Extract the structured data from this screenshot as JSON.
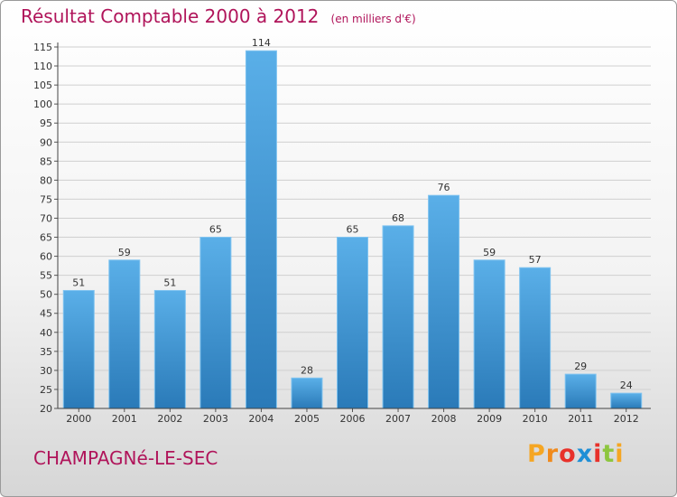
{
  "header": {
    "title": "Résultat Comptable 2000 à 2012",
    "subtitle": "(en milliers d'€)"
  },
  "footer": {
    "commune": "CHAMPAGNé-LE-SEC",
    "logo_letters": [
      "P",
      "r",
      "o",
      "x",
      "i",
      "t",
      "i"
    ],
    "logo_colors": [
      "#f5a623",
      "#f08a1c",
      "#e8312a",
      "#1f8fd6",
      "#e8312a",
      "#8dc63f",
      "#f5a623"
    ]
  },
  "colors": {
    "title": "#b0145a",
    "bar_top": "#5aafe8",
    "bar_bottom": "#2a7ab8",
    "grid": "#cfcfcf"
  },
  "chart_data": {
    "type": "bar",
    "title": "Résultat Comptable 2000 à 2012",
    "subtitle": "(en milliers d'€)",
    "xlabel": "",
    "ylabel": "",
    "categories": [
      "2000",
      "2001",
      "2002",
      "2003",
      "2004",
      "2005",
      "2006",
      "2007",
      "2008",
      "2009",
      "2010",
      "2011",
      "2012"
    ],
    "values": [
      51,
      59,
      51,
      65,
      114,
      28,
      65,
      68,
      76,
      59,
      57,
      29,
      24
    ],
    "ylim": [
      20,
      115
    ],
    "yticks": [
      20,
      25,
      30,
      35,
      40,
      45,
      50,
      55,
      60,
      65,
      70,
      75,
      80,
      85,
      90,
      95,
      100,
      105,
      110,
      115
    ],
    "grid": true
  }
}
